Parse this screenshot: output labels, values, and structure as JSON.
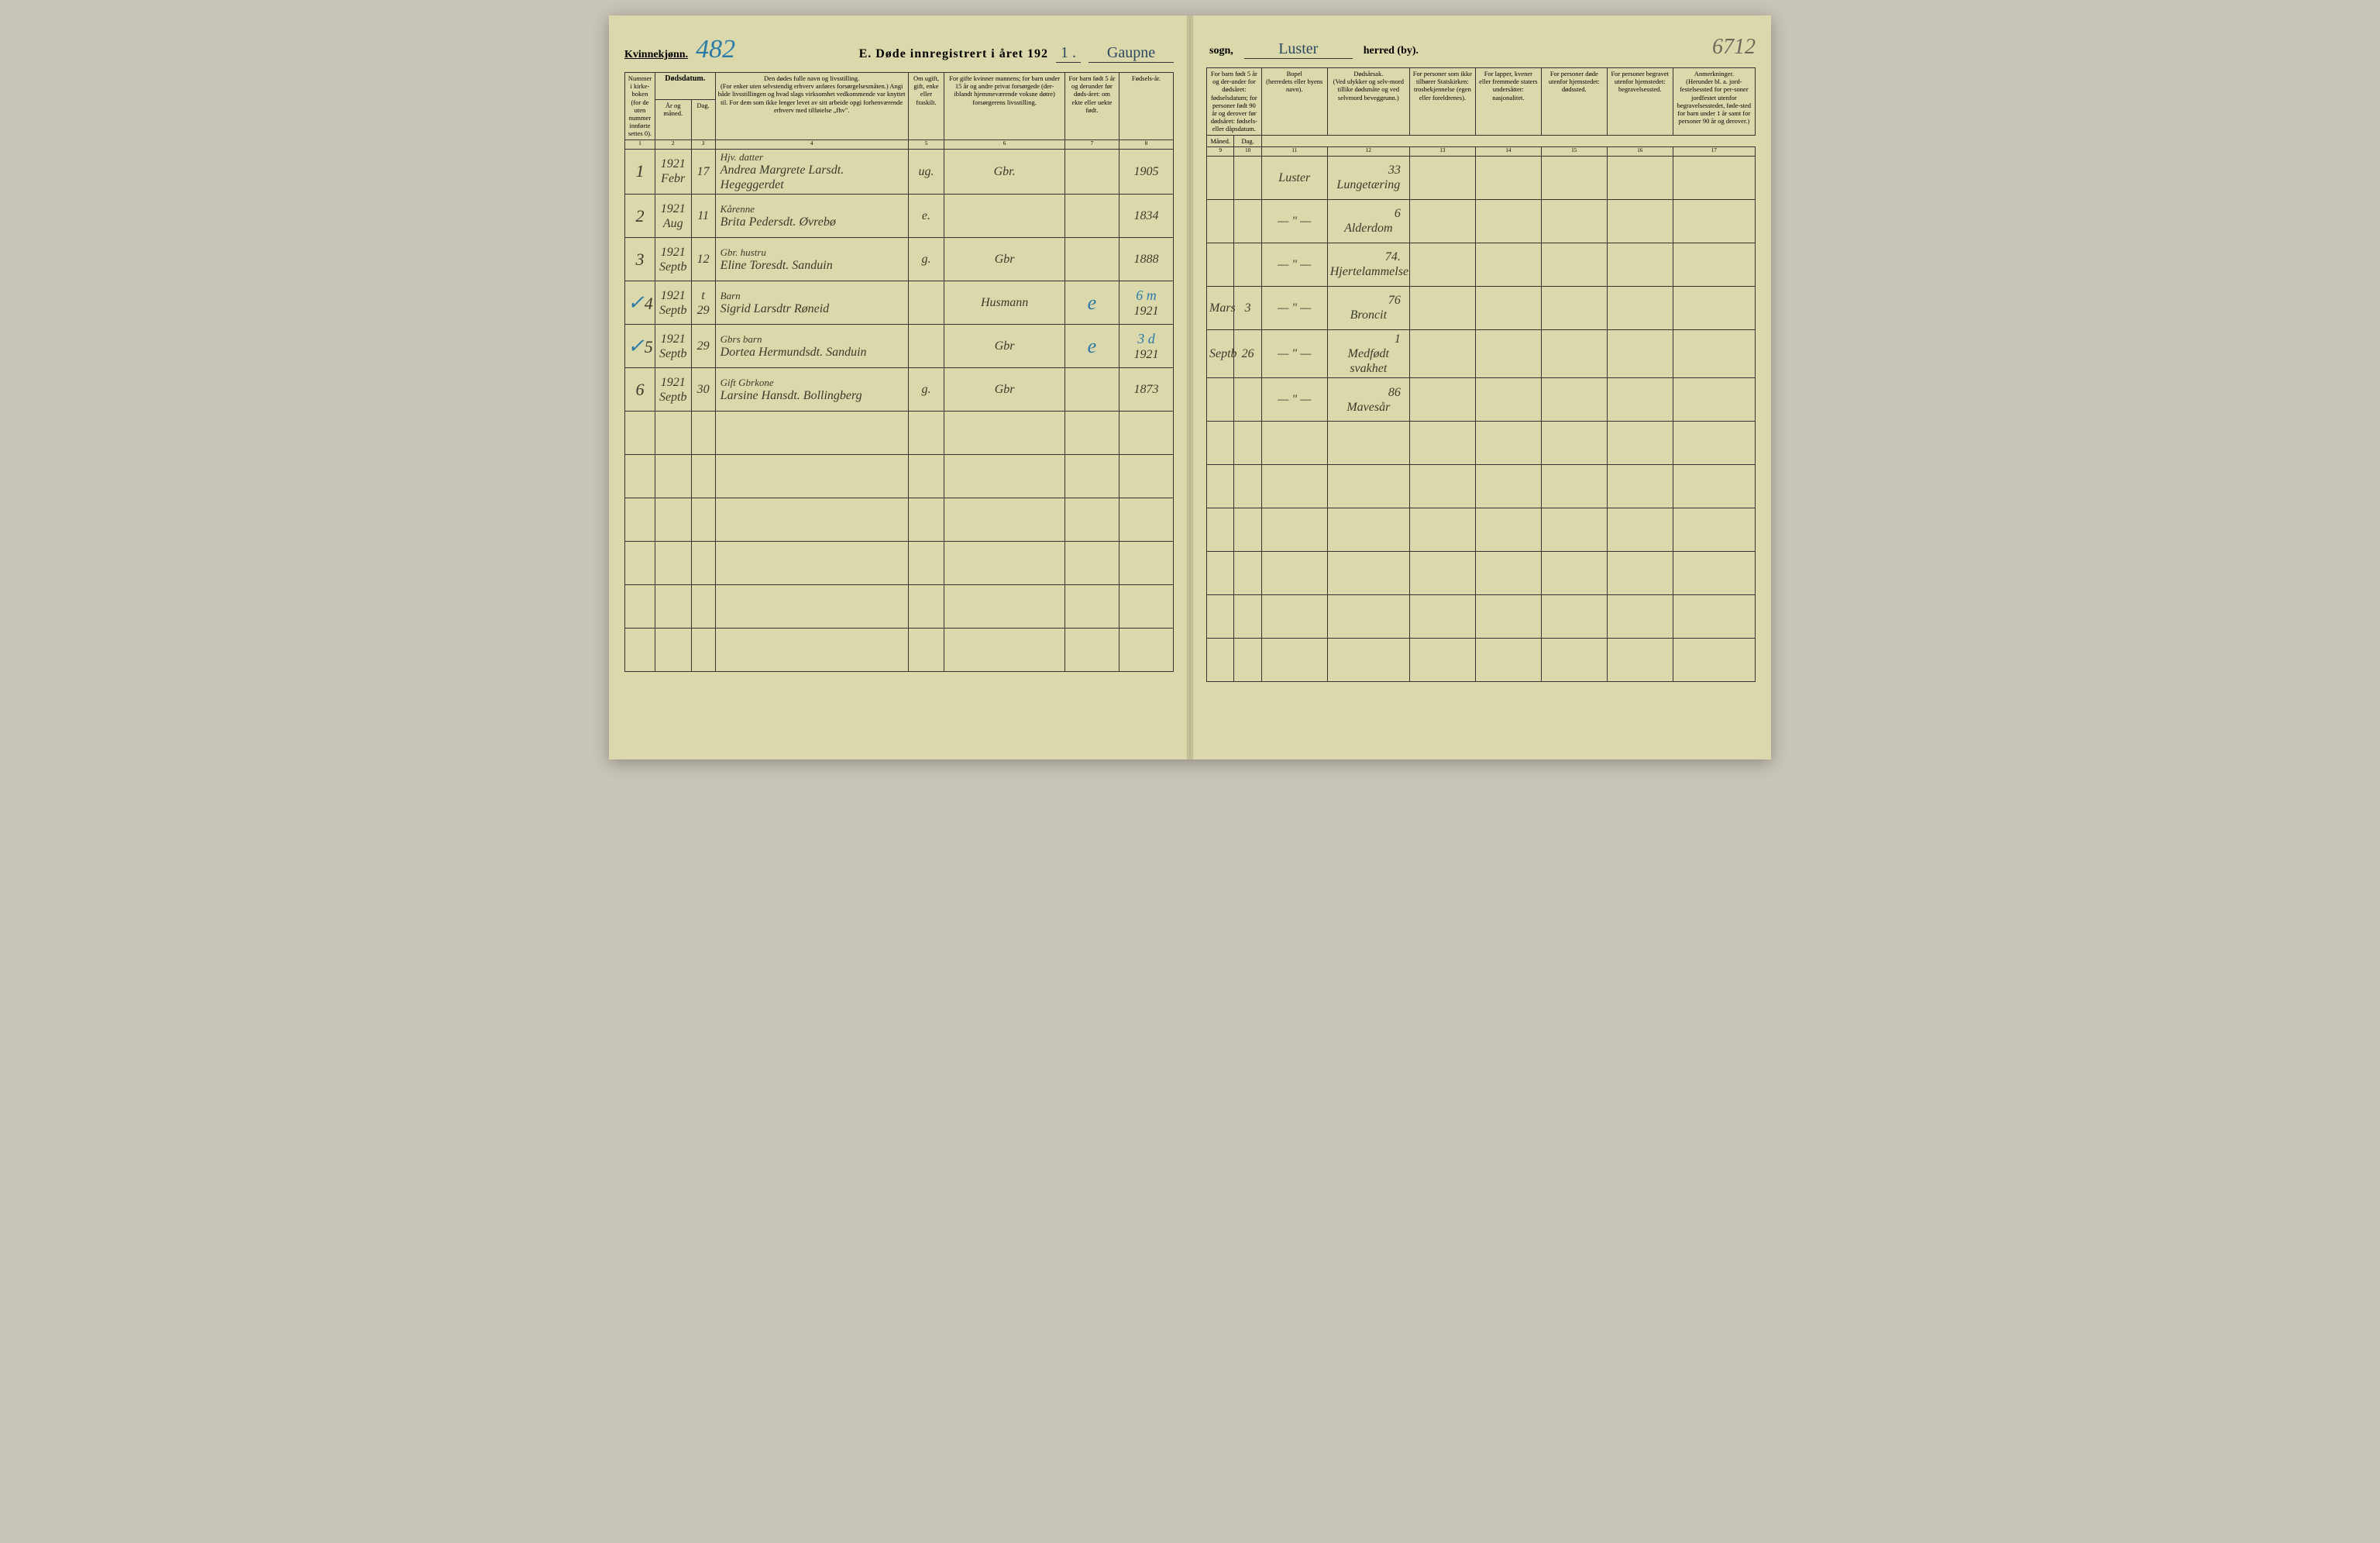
{
  "header": {
    "gender_label": "Kvinnekjønn.",
    "page_number_blue": "482",
    "printed_title": "E. Døde innregistrert i året 192",
    "year_suffix": "1 .",
    "sogn_value": "Gaupne",
    "sogn_label": "sogn,",
    "herred_value": "Luster",
    "herred_label": "herred (by).",
    "page_number_pencil": "6712"
  },
  "columns_left": {
    "c1": "Nummer i kirke-boken (for de uten nummer innførte settes 0).",
    "c2_group": "Dødsdatum.",
    "c2": "År og måned.",
    "c3": "Dag.",
    "c4": "Den dødes fulle navn og livsstilling.",
    "c4_sub": "(For enker uten selvstendig erhverv anføres forsørgelsesmåten.) Angi både livsstillingen og hvad slags virksomhet vedkommende var knyttet til. For dem som ikke lenger levet av sitt arbeide opgi forhenværende erhverv med tilføielse „fhv\".",
    "c5": "Om ugift, gift, enke eller fraskilt.",
    "c6": "For gifte kvinner mannens; for barn under 15 år og andre privat forsørgede (der-iblandt hjemmeværende voksne døtre) forsørgerens livsstilling.",
    "c7": "For barn født 5 år og derunder før døds-året: om ekte eller uekte født.",
    "c8": "Fødsels-år."
  },
  "columns_right": {
    "c9_group": "For barn født 5 år og der-under for dødsåret: fødselsdatum; for personer født 90 år og derover før dødsåret: fødsels- eller dåpsdatum.",
    "c9": "Måned.",
    "c10": "Dag.",
    "c11": "Bopel",
    "c11_sub": "(herredets eller byens navn).",
    "c12": "Dødsårsak.",
    "c12_sub": "(Ved ulykker og selv-mord tillike dødsmåte og ved selvmord beveggrunn.)",
    "c13": "For personer som ikke tilhører Statskirken:",
    "c13_sub": "trosbekjennelse (egen eller foreldrenes).",
    "c14": "For lapper, kvener eller fremmede staters undersåtter:",
    "c14_sub": "nasjonalitet.",
    "c15": "For personer døde utenfor hjemstedet:",
    "c15_sub": "dødssted.",
    "c16": "For personer begravet utenfor hjemstedet:",
    "c16_sub": "begravelsessted.",
    "c17": "Anmerkninger.",
    "c17_sub": "(Herunder bl. a. jord-festelsessted for per-soner jordfestet utenfor begravelsesstedet, føde-sted for barn under 1 år samt for personer 90 år og derover.)"
  },
  "colnums_left": [
    "1",
    "2",
    "3",
    "4",
    "5",
    "6",
    "7",
    "8"
  ],
  "colnums_right": [
    "9",
    "10",
    "11",
    "12",
    "13",
    "14",
    "15",
    "16",
    "17"
  ],
  "rows": [
    {
      "num": "1",
      "year_month": "1921 Febr",
      "day": "17",
      "name_top": "Hjv. datter",
      "name": "Andrea Margrete Larsdt. Hegeggerdet",
      "status": "ug.",
      "forsorger": "Gbr.",
      "ekte": "",
      "birth_year": "1905",
      "month": "",
      "bday": "",
      "bopel": "Luster",
      "cause_num": "33",
      "cause": "Lungetæring",
      "blue_e": ""
    },
    {
      "num": "2",
      "year_month": "1921 Aug",
      "day": "11",
      "name_top": "Kårenne",
      "name": "Brita Pedersdt. Øvrebø",
      "status": "e.",
      "forsorger": "",
      "ekte": "",
      "birth_year": "1834",
      "month": "",
      "bday": "",
      "bopel": "— \" —",
      "cause_num": "6",
      "cause": "Alderdom",
      "blue_e": ""
    },
    {
      "num": "3",
      "year_month": "1921 Septb",
      "day": "12",
      "name_top": "Gbr. hustru",
      "name": "Eline Toresdt. Sanduin",
      "status": "g.",
      "forsorger": "Gbr",
      "ekte": "",
      "birth_year": "1888",
      "month": "",
      "bday": "",
      "bopel": "— \" —",
      "cause_num": "74.",
      "cause": "Hjertelammelse",
      "blue_e": ""
    },
    {
      "num": "4",
      "check": "✓",
      "year_month": "1921 Septb",
      "day": "t 29",
      "name_top": "Barn",
      "name": "Sigrid Larsdtr Røneid",
      "status": "",
      "forsorger": "Husmann",
      "ekte": "e",
      "birth_year": "1921",
      "blue_note": "6 m",
      "month": "Mars",
      "bday": "3",
      "bopel": "— \" —",
      "cause_num": "76",
      "cause": "Broncit",
      "blue_e": "e"
    },
    {
      "num": "5",
      "check": "✓",
      "year_month": "1921 Septb",
      "day": "29",
      "name_top": "Gbrs barn",
      "name": "Dortea Hermundsdt. Sanduin",
      "status": "",
      "forsorger": "Gbr",
      "ekte": "e",
      "birth_year": "1921",
      "blue_note": "3 d",
      "month": "Septb",
      "bday": "26",
      "bopel": "— \" —",
      "cause_num": "1",
      "cause": "Medfødt svakhet",
      "blue_e": "e"
    },
    {
      "num": "6",
      "year_month": "1921 Septb",
      "day": "30",
      "name_top": "Gift Gbrkone",
      "name": "Larsine Hansdt. Bollingberg",
      "status": "g.",
      "forsorger": "Gbr",
      "ekte": "",
      "birth_year": "1873",
      "month": "",
      "bday": "",
      "bopel": "— \" —",
      "cause_num": "86",
      "cause": "Mavesår",
      "blue_e": ""
    },
    {},
    {},
    {},
    {},
    {},
    {}
  ]
}
